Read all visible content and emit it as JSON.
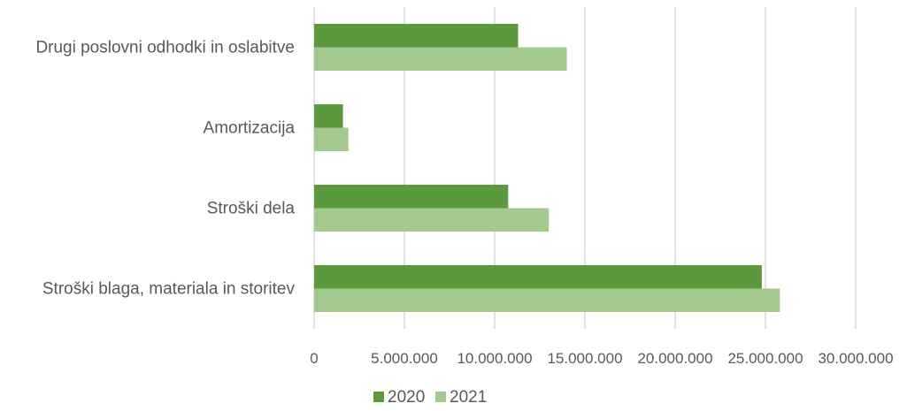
{
  "chart_data": {
    "type": "bar",
    "orientation": "horizontal",
    "categories": [
      "Drugi poslovni odhodki in oslabitve",
      "Amortizacija",
      "Stroški dela",
      "Stroški blaga, materiala in storitev"
    ],
    "series": [
      {
        "name": "2020",
        "color": "#5b9a3c",
        "values": [
          11300000,
          1600000,
          10750000,
          24800000
        ]
      },
      {
        "name": "2021",
        "color": "#a4c98f",
        "values": [
          14000000,
          1900000,
          13000000,
          25800000
        ]
      }
    ],
    "xlim": [
      0,
      30000000
    ],
    "xticks": [
      0,
      5000000,
      10000000,
      15000000,
      20000000,
      25000000,
      30000000
    ],
    "xtick_labels": [
      "0",
      "5.000.000",
      "10.000.000",
      "15.000.000",
      "20.000.000",
      "25.000.000",
      "30.000.000"
    ],
    "grid": true,
    "legend_position": "bottom"
  }
}
